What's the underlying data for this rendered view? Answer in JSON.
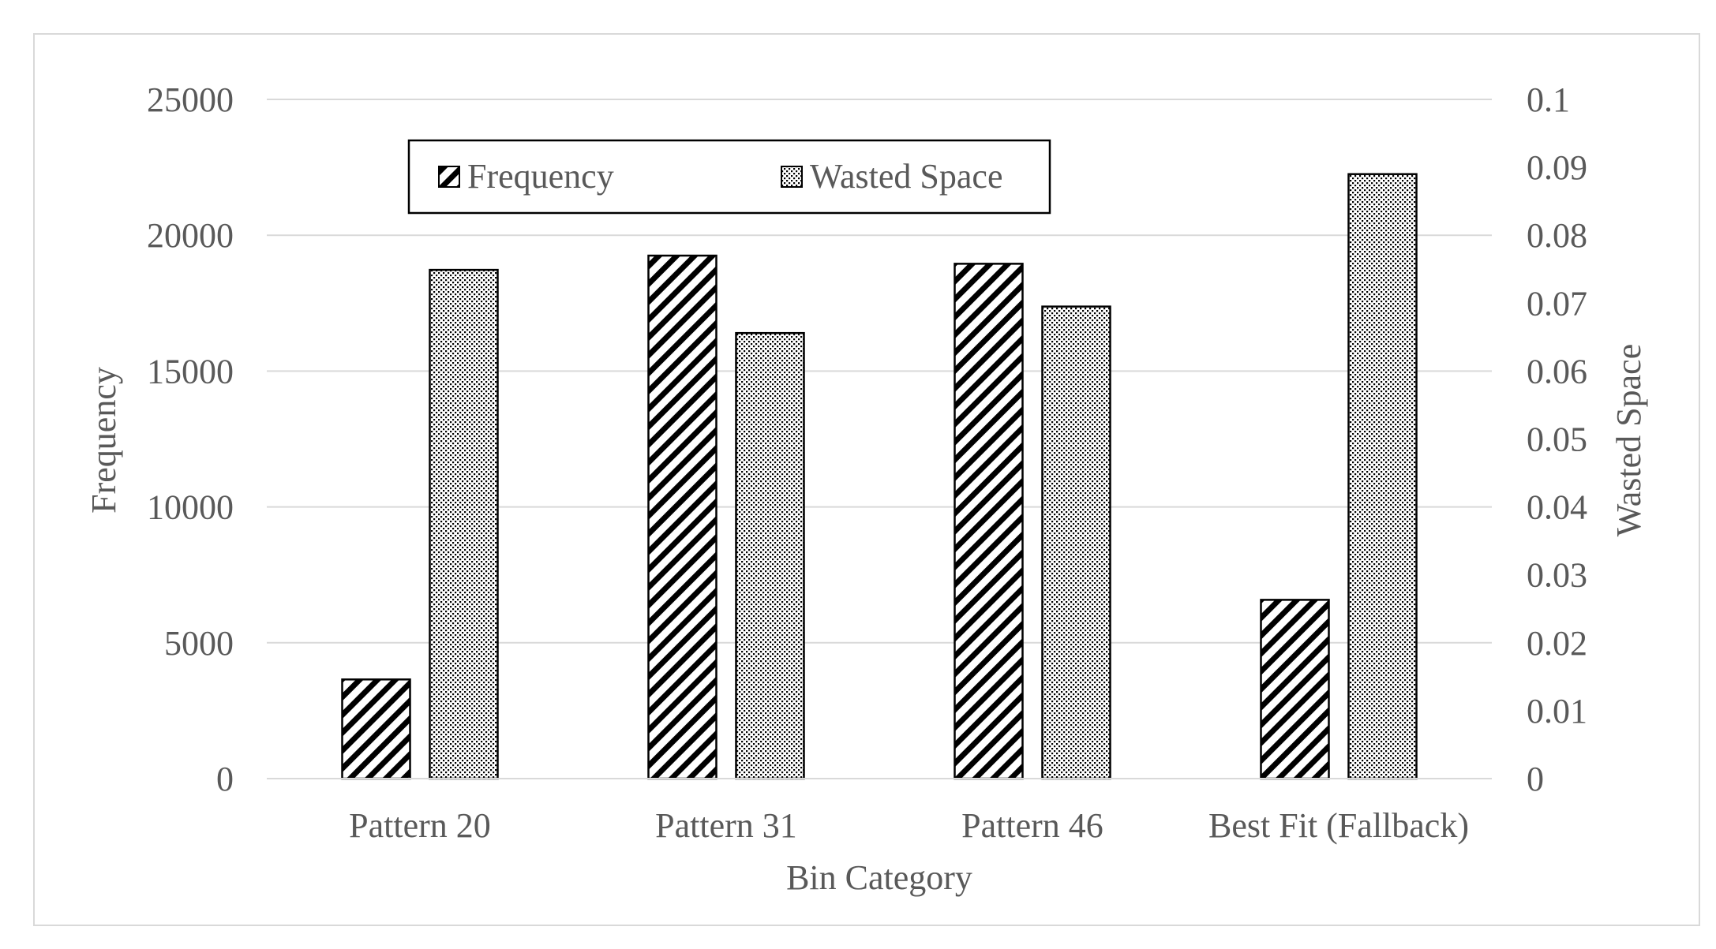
{
  "chart_data": {
    "type": "bar",
    "title": "",
    "categories": [
      "Pattern 20",
      "Pattern 31",
      "Pattern 46",
      "Best Fit (Fallback)"
    ],
    "series": [
      {
        "name": "Frequency",
        "axis": "left",
        "pattern": "hatch",
        "values": [
          3650,
          19250,
          18950,
          6580
        ]
      },
      {
        "name": "Wasted Space",
        "axis": "right",
        "pattern": "dots",
        "values": [
          0.0749,
          0.0656,
          0.0695,
          0.089
        ]
      }
    ],
    "xlabel": "Bin Category",
    "ylabel": "Frequency",
    "y2label": "Wasted Space",
    "ylim": [
      0,
      25000
    ],
    "y2lim": [
      0,
      0.1
    ],
    "yticks": [
      "0",
      "5000",
      "10000",
      "15000",
      "20000",
      "25000"
    ],
    "y2ticks": [
      "0",
      "0.01",
      "0.02",
      "0.03",
      "0.04",
      "0.05",
      "0.06",
      "0.07",
      "0.08",
      "0.09",
      "0.1"
    ],
    "grid": true,
    "legend_position": "top-left-inside",
    "colors": {
      "text": "#595959",
      "grid": "#d9d9d9",
      "bar_stroke": "#000000",
      "pattern_fill": "#000000"
    }
  }
}
